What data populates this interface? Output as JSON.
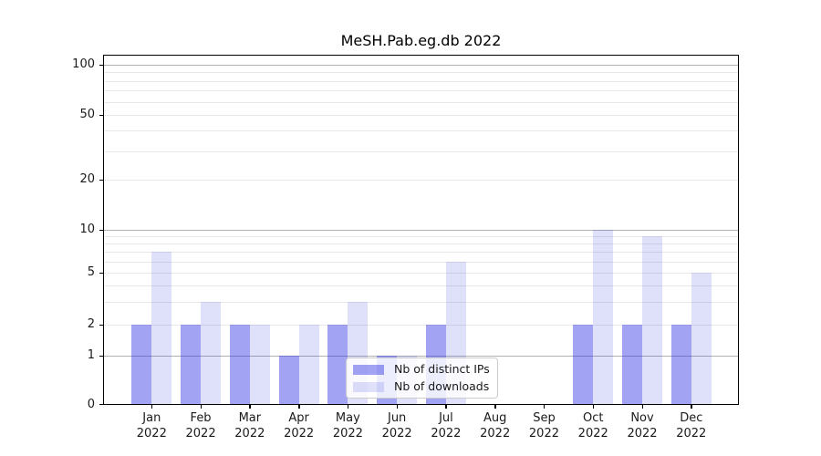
{
  "figure": {
    "title": "MeSH.Pab.eg.db 2022"
  },
  "chart_data": {
    "type": "bar",
    "title": "MeSH.Pab.eg.db 2022",
    "categories": [
      "Jan",
      "Feb",
      "Mar",
      "Apr",
      "May",
      "Jun",
      "Jul",
      "Aug",
      "Sep",
      "Oct",
      "Nov",
      "Dec"
    ],
    "category_year": "2022",
    "series": [
      {
        "name": "Nb of distinct IPs",
        "color": "rgba(48,52,226,0.45)",
        "values": [
          2,
          2,
          2,
          1,
          2,
          1,
          2,
          0,
          0,
          2,
          2,
          2
        ]
      },
      {
        "name": "Nb of downloads",
        "color": "rgba(40,48,222,0.15)",
        "values": [
          7,
          3,
          2,
          2,
          3,
          1,
          6,
          0,
          0,
          10,
          9,
          5
        ]
      }
    ],
    "xlabel": "",
    "ylabel": "",
    "yscale": "symlog",
    "ylim": [
      0,
      110
    ],
    "y_tick_values": [
      100,
      50,
      20,
      10,
      5,
      2,
      1,
      0
    ],
    "y_tick_labels": [
      "100",
      "50",
      "20",
      "10",
      "5",
      "2",
      "1",
      "0"
    ],
    "gridlines": {
      "on": true,
      "major": [
        1,
        10,
        100
      ],
      "minor": [
        2,
        3,
        4,
        5,
        6,
        7,
        8,
        9,
        20,
        30,
        40,
        50,
        60,
        70,
        80,
        90
      ]
    },
    "legend_position": "lower center",
    "colors": {
      "distinct_ips_bar": "rgba(48,52,226,0.45)",
      "downloads_bar": "rgba(40,48,222,0.15)",
      "major_grid": "#b0b0b0",
      "minor_grid": "#e8e8e8",
      "axis": "#000000",
      "text": "#1a1a1a",
      "background": "#ffffff"
    }
  }
}
